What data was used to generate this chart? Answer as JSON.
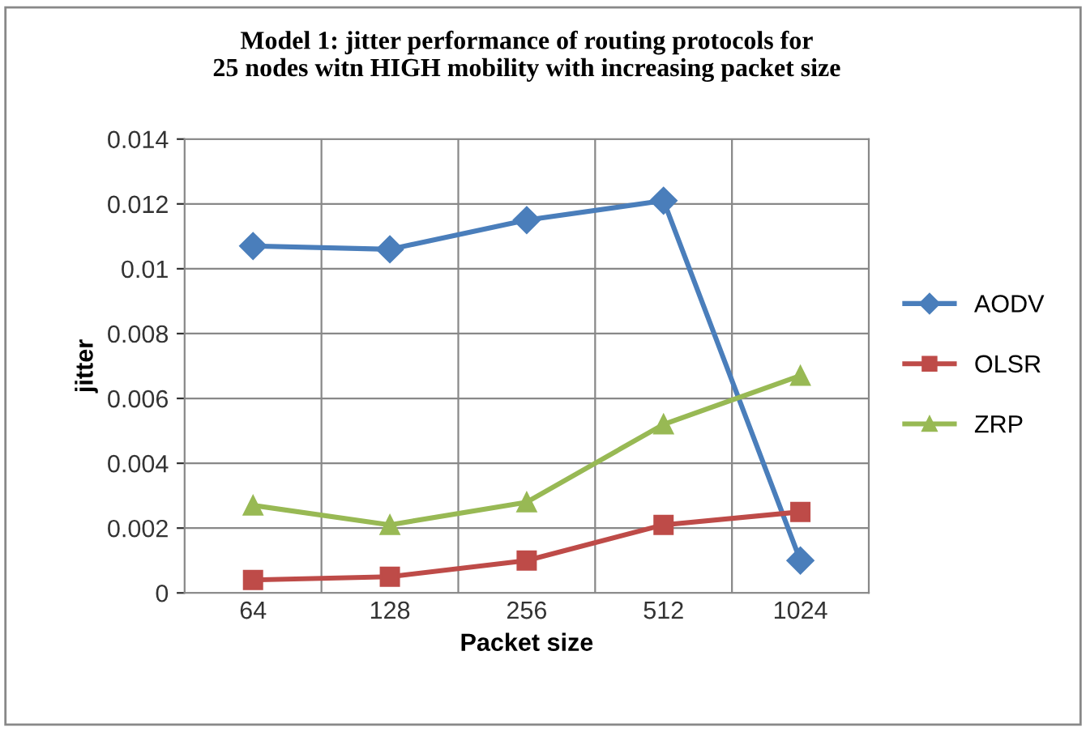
{
  "chart_data": {
    "type": "line",
    "title": "Model 1: jitter performance of routing protocols for\n25 nodes witn HIGH mobility with increasing packet size",
    "xlabel": "Packet size",
    "ylabel": "jitter",
    "categories": [
      "64",
      "128",
      "256",
      "512",
      "1024"
    ],
    "series": [
      {
        "name": "AODV",
        "color": "#4a7ebb",
        "marker": "diamond",
        "values": [
          0.0107,
          0.0106,
          0.0115,
          0.0121,
          0.001
        ]
      },
      {
        "name": "OLSR",
        "color": "#be4b48",
        "marker": "square",
        "values": [
          0.0004,
          0.0005,
          0.001,
          0.0021,
          0.0025
        ]
      },
      {
        "name": "ZRP",
        "color": "#98b954",
        "marker": "triangle",
        "values": [
          0.0027,
          0.0021,
          0.0028,
          0.0052,
          0.0067
        ]
      }
    ],
    "ylim": [
      0,
      0.014
    ],
    "yticks": [
      0,
      0.002,
      0.004,
      0.006,
      0.008,
      0.01,
      0.012,
      0.014
    ],
    "grid": true,
    "legend": "right",
    "line_style": "solid"
  }
}
